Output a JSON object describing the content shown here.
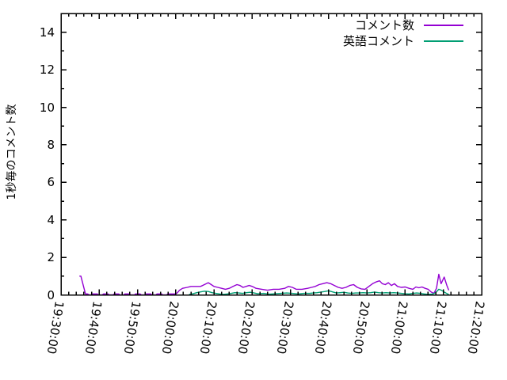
{
  "figure": {
    "background": "#ffffff",
    "border_color": "#000000",
    "text_color": "#000000"
  },
  "chart_data": {
    "type": "line",
    "title": "",
    "xlabel": "",
    "ylabel": "1秒毎のコメント数",
    "legend_position": "top-right-inside",
    "grid": false,
    "x_unit": "minutes after 19:30:00",
    "x_tick_interval_min": 10,
    "x_minor_tick_interval_min": 2,
    "x_tick_labels": [
      "19:30:00",
      "19:40:00",
      "19:50:00",
      "20:00:00",
      "20:10:00",
      "20:20:00",
      "20:30:00",
      "20:40:00",
      "20:50:00",
      "21:00:00",
      "21:10:00",
      "21:20:00"
    ],
    "xlim_minutes": [
      0,
      110
    ],
    "ylim": [
      0,
      15
    ],
    "y_ticks": [
      0,
      2,
      4,
      6,
      8,
      10,
      12,
      14
    ],
    "y_minor_tick_step": 1,
    "series": [
      {
        "name": "コメント数",
        "color": "#9400d3",
        "points": [
          [
            4.8,
            1.0
          ],
          [
            5.2,
            1.0
          ],
          [
            6.4,
            0.05
          ],
          [
            7.0,
            0.05
          ],
          [
            7.3,
            0.0
          ],
          [
            8.0,
            0.0
          ],
          [
            8.3,
            0.05
          ],
          [
            9.5,
            0.05
          ],
          [
            9.8,
            0.0
          ],
          [
            10.8,
            0.0
          ],
          [
            11.1,
            0.05
          ],
          [
            12.3,
            0.05
          ],
          [
            12.6,
            0.0
          ],
          [
            13.6,
            0.0
          ],
          [
            13.9,
            0.05
          ],
          [
            15.1,
            0.05
          ],
          [
            15.4,
            0.0
          ],
          [
            16.4,
            0.0
          ],
          [
            16.7,
            0.05
          ],
          [
            17.9,
            0.05
          ],
          [
            18.2,
            0.0
          ],
          [
            19.2,
            0.0
          ],
          [
            19.5,
            0.05
          ],
          [
            20.7,
            0.05
          ],
          [
            21.0,
            0.0
          ],
          [
            22.0,
            0.0
          ],
          [
            22.3,
            0.05
          ],
          [
            23.5,
            0.05
          ],
          [
            23.8,
            0.0
          ],
          [
            24.8,
            0.0
          ],
          [
            25.1,
            0.05
          ],
          [
            26.3,
            0.05
          ],
          [
            26.6,
            0.0
          ],
          [
            27.6,
            0.0
          ],
          [
            27.9,
            0.05
          ],
          [
            29.1,
            0.05
          ],
          [
            29.8,
            0.05
          ],
          [
            30.4,
            0.1
          ],
          [
            31.0,
            0.25
          ],
          [
            31.8,
            0.35
          ],
          [
            33.0,
            0.4
          ],
          [
            34.0,
            0.45
          ],
          [
            35.5,
            0.45
          ],
          [
            36.5,
            0.45
          ],
          [
            37.5,
            0.55
          ],
          [
            38.5,
            0.65
          ],
          [
            39.3,
            0.55
          ],
          [
            40.0,
            0.45
          ],
          [
            41.0,
            0.4
          ],
          [
            42.0,
            0.35
          ],
          [
            43.0,
            0.3
          ],
          [
            44.0,
            0.35
          ],
          [
            45.0,
            0.45
          ],
          [
            46.0,
            0.55
          ],
          [
            46.8,
            0.5
          ],
          [
            47.6,
            0.4
          ],
          [
            48.4,
            0.45
          ],
          [
            49.2,
            0.5
          ],
          [
            50.0,
            0.45
          ],
          [
            51.0,
            0.35
          ],
          [
            52.5,
            0.3
          ],
          [
            54.0,
            0.25
          ],
          [
            55.5,
            0.3
          ],
          [
            57.0,
            0.3
          ],
          [
            58.5,
            0.35
          ],
          [
            59.5,
            0.45
          ],
          [
            60.5,
            0.4
          ],
          [
            61.5,
            0.3
          ],
          [
            63.0,
            0.3
          ],
          [
            64.5,
            0.35
          ],
          [
            65.5,
            0.4
          ],
          [
            66.5,
            0.45
          ],
          [
            67.5,
            0.55
          ],
          [
            68.5,
            0.6
          ],
          [
            69.5,
            0.65
          ],
          [
            70.5,
            0.6
          ],
          [
            71.5,
            0.5
          ],
          [
            72.5,
            0.4
          ],
          [
            73.5,
            0.35
          ],
          [
            74.5,
            0.4
          ],
          [
            75.5,
            0.5
          ],
          [
            76.5,
            0.55
          ],
          [
            77.5,
            0.4
          ],
          [
            78.5,
            0.32
          ],
          [
            79.5,
            0.3
          ],
          [
            80.5,
            0.45
          ],
          [
            81.5,
            0.6
          ],
          [
            82.5,
            0.7
          ],
          [
            83.3,
            0.75
          ],
          [
            84.0,
            0.6
          ],
          [
            84.8,
            0.55
          ],
          [
            85.6,
            0.65
          ],
          [
            86.4,
            0.5
          ],
          [
            87.2,
            0.6
          ],
          [
            88.0,
            0.45
          ],
          [
            89.0,
            0.4
          ],
          [
            90.0,
            0.42
          ],
          [
            91.0,
            0.35
          ],
          [
            92.0,
            0.3
          ],
          [
            92.8,
            0.42
          ],
          [
            93.6,
            0.38
          ],
          [
            94.4,
            0.42
          ],
          [
            95.2,
            0.35
          ],
          [
            96.0,
            0.3
          ],
          [
            96.8,
            0.15
          ],
          [
            97.5,
            0.08
          ],
          [
            98.2,
            0.35
          ],
          [
            98.8,
            1.1
          ],
          [
            99.4,
            0.6
          ],
          [
            100.2,
            0.95
          ],
          [
            100.9,
            0.5
          ],
          [
            101.4,
            0.25
          ]
        ]
      },
      {
        "name": "英語コメント",
        "color": "#009e73",
        "points": [
          [
            33.5,
            0.02
          ],
          [
            34.5,
            0.06
          ],
          [
            35.5,
            0.12
          ],
          [
            36.5,
            0.16
          ],
          [
            37.5,
            0.2
          ],
          [
            38.5,
            0.18
          ],
          [
            39.5,
            0.12
          ],
          [
            40.5,
            0.08
          ],
          [
            41.5,
            0.05
          ],
          [
            42.5,
            0.03
          ],
          [
            43.5,
            0.05
          ],
          [
            44.5,
            0.08
          ],
          [
            45.5,
            0.12
          ],
          [
            46.5,
            0.1
          ],
          [
            47.5,
            0.08
          ],
          [
            48.5,
            0.12
          ],
          [
            49.5,
            0.14
          ],
          [
            50.5,
            0.1
          ],
          [
            51.5,
            0.06
          ],
          [
            53.0,
            0.08
          ],
          [
            54.5,
            0.04
          ],
          [
            56.0,
            0.06
          ],
          [
            57.5,
            0.08
          ],
          [
            59.0,
            0.1
          ],
          [
            60.5,
            0.08
          ],
          [
            62.0,
            0.05
          ],
          [
            63.5,
            0.08
          ],
          [
            65.0,
            0.08
          ],
          [
            66.0,
            0.1
          ],
          [
            67.0,
            0.12
          ],
          [
            68.0,
            0.15
          ],
          [
            69.0,
            0.18
          ],
          [
            70.0,
            0.22
          ],
          [
            71.0,
            0.16
          ],
          [
            72.0,
            0.1
          ],
          [
            73.0,
            0.12
          ],
          [
            74.0,
            0.14
          ],
          [
            75.0,
            0.1
          ],
          [
            76.0,
            0.08
          ],
          [
            77.0,
            0.1
          ],
          [
            78.0,
            0.1
          ],
          [
            79.0,
            0.12
          ],
          [
            80.0,
            0.1
          ],
          [
            81.0,
            0.12
          ],
          [
            82.0,
            0.15
          ],
          [
            83.0,
            0.12
          ],
          [
            84.0,
            0.1
          ],
          [
            85.0,
            0.12
          ],
          [
            86.0,
            0.1
          ],
          [
            87.0,
            0.12
          ],
          [
            88.0,
            0.1
          ],
          [
            89.0,
            0.08
          ],
          [
            90.0,
            0.06
          ],
          [
            91.0,
            0.05
          ],
          [
            92.0,
            0.08
          ],
          [
            93.0,
            0.1
          ],
          [
            94.0,
            0.08
          ],
          [
            95.0,
            0.05
          ],
          [
            96.0,
            0.03
          ],
          [
            97.0,
            0.04
          ],
          [
            98.0,
            0.12
          ],
          [
            98.8,
            0.3
          ],
          [
            99.5,
            0.25
          ],
          [
            100.2,
            0.15
          ],
          [
            100.9,
            0.07
          ],
          [
            101.4,
            0.02
          ]
        ]
      }
    ]
  }
}
